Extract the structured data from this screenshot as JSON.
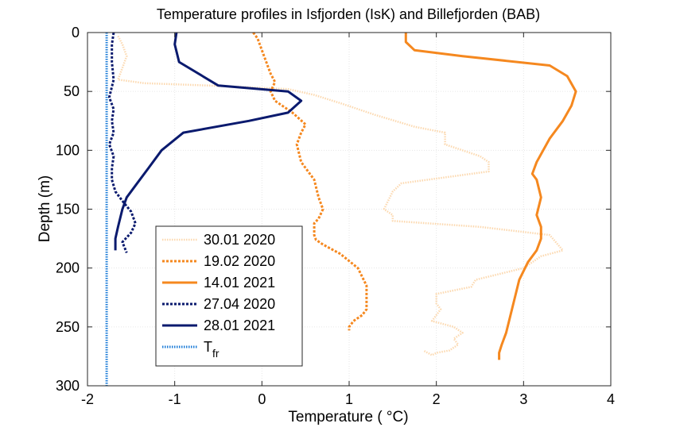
{
  "chart_data": {
    "type": "line",
    "title": "Temperature profiles in Isfjorden (IsK) and Billefjorden (BAB)",
    "xlabel": "Temperature ( °C)",
    "ylabel": "Depth (m)",
    "xlim": [
      -2,
      4
    ],
    "ylim": [
      0,
      300
    ],
    "y_reversed": true,
    "xticks": [
      "-2",
      "-1",
      "0",
      "1",
      "2",
      "3",
      "4"
    ],
    "yticks": [
      "0",
      "50",
      "100",
      "150",
      "200",
      "250",
      "300"
    ],
    "grid": true,
    "legend_position": "lower-left",
    "series": [
      {
        "name": "30.01 2020",
        "color": "#fcd9b0",
        "style": "dotted",
        "x": [
          -1.65,
          -1.6,
          -1.55,
          -1.6,
          -1.65,
          -1.35,
          -0.6,
          0.3,
          0.6,
          0.9,
          1.3,
          1.75,
          2.1,
          2.1,
          2.5,
          2.6,
          2.6,
          1.6,
          1.5,
          1.4,
          1.5,
          1.5,
          2.5,
          3.3,
          3.45,
          3.2,
          3.0,
          2.45,
          2.4,
          2.0,
          2.0,
          2.05,
          1.95,
          2.2,
          2.3,
          2.2,
          2.25,
          2.15,
          2.0,
          1.95,
          1.85
        ],
        "y": [
          3,
          10,
          20,
          30,
          40,
          43,
          45,
          48,
          53,
          60,
          70,
          80,
          85,
          95,
          105,
          110,
          118,
          128,
          135,
          150,
          155,
          160,
          165,
          172,
          185,
          190,
          200,
          210,
          216,
          222,
          230,
          235,
          245,
          250,
          255,
          260,
          265,
          270,
          272,
          274,
          270
        ]
      },
      {
        "name": "19.02 2020",
        "color": "#f5881f",
        "style": "dashed",
        "x": [
          -0.1,
          -0.05,
          0.0,
          0.05,
          0.1,
          0.15,
          0.1,
          0.15,
          0.35,
          0.5,
          0.45,
          0.4,
          0.45,
          0.6,
          0.65,
          0.7,
          0.65,
          0.6,
          0.6,
          0.6,
          0.62,
          0.7,
          0.9,
          1.1,
          1.2,
          1.2,
          1.2,
          1.15,
          1.05,
          1.0,
          1.0
        ],
        "y": [
          0,
          5,
          15,
          25,
          35,
          42,
          50,
          58,
          68,
          78,
          85,
          95,
          110,
          125,
          140,
          150,
          158,
          162,
          168,
          172,
          176,
          180,
          188,
          200,
          215,
          225,
          235,
          240,
          245,
          250,
          253
        ]
      },
      {
        "name": "14.01 2021",
        "color": "#f5881f",
        "style": "solid",
        "x": [
          1.65,
          1.65,
          1.75,
          2.3,
          3.3,
          3.5,
          3.6,
          3.55,
          3.45,
          3.3,
          3.15,
          3.1,
          3.15,
          3.2,
          3.15,
          3.2,
          3.2,
          3.15,
          3.05,
          2.95,
          2.9,
          2.85,
          2.8,
          2.75,
          2.72,
          2.72
        ],
        "y": [
          0,
          8,
          15,
          20,
          28,
          37,
          50,
          62,
          75,
          90,
          110,
          120,
          125,
          140,
          155,
          165,
          175,
          185,
          195,
          210,
          225,
          240,
          255,
          265,
          272,
          278
        ]
      },
      {
        "name": "27.04 2020",
        "color": "#0a1a6e",
        "style": "dashed",
        "x": [
          -1.7,
          -1.72,
          -1.72,
          -1.7,
          -1.75,
          -1.7,
          -1.72,
          -1.7,
          -1.75,
          -1.7,
          -1.72,
          -1.72,
          -1.68,
          -1.6,
          -1.5,
          -1.45,
          -1.5,
          -1.6,
          -1.55
        ],
        "y": [
          0,
          10,
          25,
          40,
          55,
          65,
          75,
          85,
          95,
          105,
          115,
          125,
          135,
          143,
          152,
          162,
          170,
          178,
          187
        ]
      },
      {
        "name": "28.01 2021",
        "color": "#0a1a6e",
        "style": "solid",
        "x": [
          -0.98,
          -1.0,
          -0.95,
          -0.5,
          0.3,
          0.45,
          0.3,
          -0.15,
          -0.9,
          -1.15,
          -1.3,
          -1.45,
          -1.55,
          -1.6,
          -1.65,
          -1.68,
          -1.68
        ],
        "y": [
          0,
          10,
          25,
          45,
          50,
          58,
          68,
          75,
          85,
          100,
          115,
          130,
          140,
          150,
          165,
          175,
          185
        ]
      },
      {
        "name": "T",
        "name_sub": "fr",
        "color": "#1f7ed8",
        "style": "dotted",
        "x": [
          -1.78,
          -1.78
        ],
        "y": [
          0,
          300
        ]
      }
    ]
  }
}
